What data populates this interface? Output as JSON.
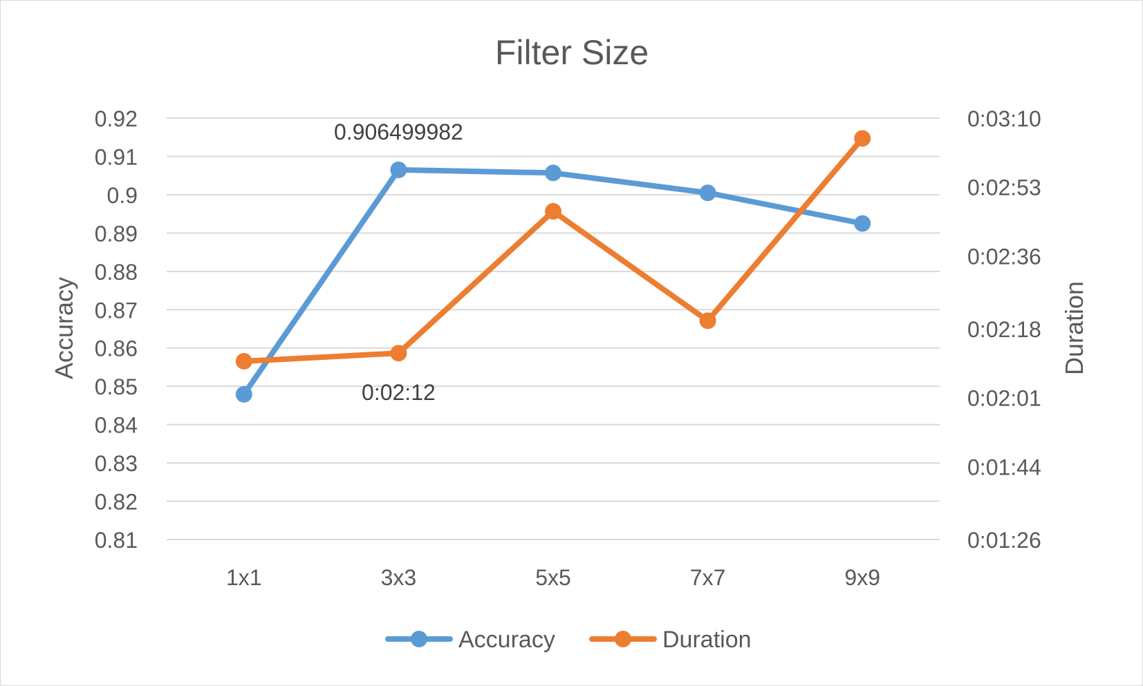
{
  "chart_data": {
    "type": "line",
    "title": "Filter Size",
    "categories": [
      "1x1",
      "3x3",
      "5x5",
      "7x7",
      "9x9"
    ],
    "y_left": {
      "label": "Accuracy",
      "lim": [
        0.81,
        0.92
      ],
      "ticks": [
        "0.81",
        "0.82",
        "0.83",
        "0.84",
        "0.85",
        "0.86",
        "0.87",
        "0.88",
        "0.89",
        "0.9",
        "0.91",
        "0.92"
      ]
    },
    "y_right": {
      "label": "Duration",
      "lim": [
        "0:01:26",
        "0:03:10"
      ],
      "ticks": [
        "0:01:26",
        "0:01:44",
        "0:02:01",
        "0:02:18",
        "0:02:36",
        "0:02:53",
        "0:03:10"
      ]
    },
    "series": [
      {
        "name": "Accuracy",
        "axis": "left",
        "color": "#5b9bd5",
        "values": [
          0.8479,
          0.906499982,
          0.9057,
          0.9005,
          0.8925
        ]
      },
      {
        "name": "Duration",
        "axis": "right",
        "color": "#ed7d31",
        "values": [
          "0:02:10",
          "0:02:12",
          "0:02:47",
          "0:02:20",
          "0:03:05"
        ]
      }
    ],
    "data_labels": [
      {
        "series": "Accuracy",
        "category": "3x3",
        "text": "0.906499982",
        "position": "above"
      },
      {
        "series": "Duration",
        "category": "3x3",
        "text": "0:02:12",
        "position": "below"
      }
    ],
    "grid": true,
    "legend_position": "bottom"
  }
}
